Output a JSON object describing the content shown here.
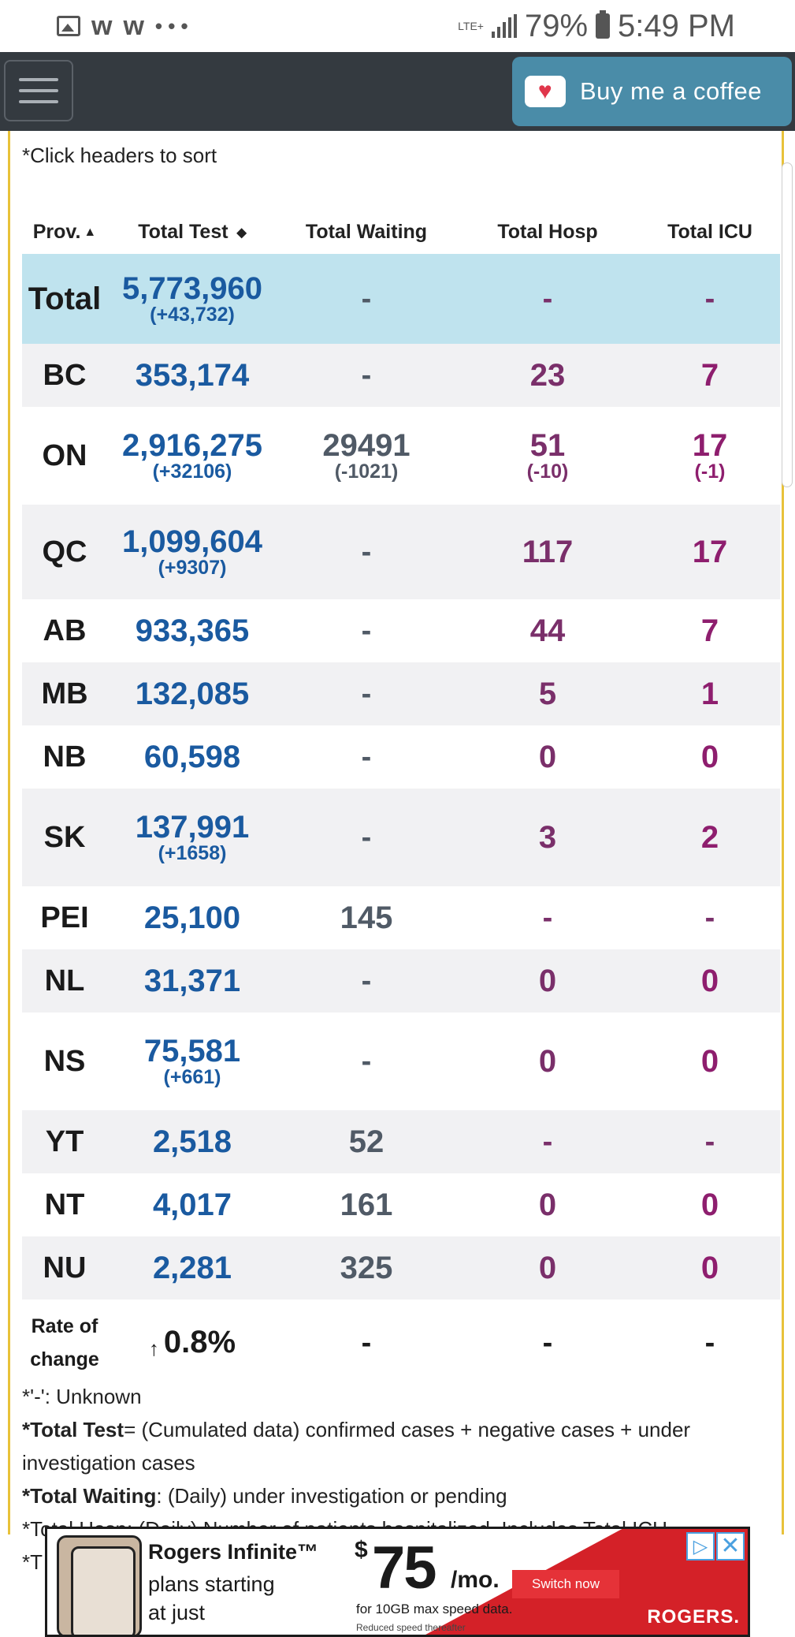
{
  "status_bar": {
    "network": "LTE+",
    "battery": "79%",
    "time": "5:49 PM",
    "icons": [
      "gallery-icon",
      "w-app-icon",
      "w-app-icon",
      "more-icon"
    ]
  },
  "nav": {
    "menu_icon": "hamburger-icon",
    "coffee_label": "Buy me a coffee"
  },
  "sort_note": "*Click headers to sort",
  "table": {
    "headers": [
      "Prov.",
      "Total Test",
      "Total Waiting",
      "Total Hosp",
      "Total ICU"
    ],
    "total": {
      "prov": "Total",
      "test": "5,773,960",
      "test_change": "(+43,732)",
      "waiting": "-",
      "hosp": "-",
      "icu": "-"
    },
    "rows": [
      {
        "prov": "BC",
        "test": "353,174",
        "test_change": "",
        "waiting": "-",
        "waiting_change": "",
        "hosp": "23",
        "hosp_change": "",
        "icu": "7",
        "icu_change": ""
      },
      {
        "prov": "ON",
        "test": "2,916,275",
        "test_change": "(+32106)",
        "waiting": "29491",
        "waiting_change": "(-1021)",
        "hosp": "51",
        "hosp_change": "(-10)",
        "icu": "17",
        "icu_change": "(-1)"
      },
      {
        "prov": "QC",
        "test": "1,099,604",
        "test_change": "(+9307)",
        "waiting": "-",
        "waiting_change": "",
        "hosp": "117",
        "hosp_change": "",
        "icu": "17",
        "icu_change": ""
      },
      {
        "prov": "AB",
        "test": "933,365",
        "test_change": "",
        "waiting": "-",
        "waiting_change": "",
        "hosp": "44",
        "hosp_change": "",
        "icu": "7",
        "icu_change": ""
      },
      {
        "prov": "MB",
        "test": "132,085",
        "test_change": "",
        "waiting": "-",
        "waiting_change": "",
        "hosp": "5",
        "hosp_change": "",
        "icu": "1",
        "icu_change": ""
      },
      {
        "prov": "NB",
        "test": "60,598",
        "test_change": "",
        "waiting": "-",
        "waiting_change": "",
        "hosp": "0",
        "hosp_change": "",
        "icu": "0",
        "icu_change": ""
      },
      {
        "prov": "SK",
        "test": "137,991",
        "test_change": "(+1658)",
        "waiting": "-",
        "waiting_change": "",
        "hosp": "3",
        "hosp_change": "",
        "icu": "2",
        "icu_change": ""
      },
      {
        "prov": "PEI",
        "test": "25,100",
        "test_change": "",
        "waiting": "145",
        "waiting_change": "",
        "hosp": "-",
        "hosp_change": "",
        "icu": "-",
        "icu_change": ""
      },
      {
        "prov": "NL",
        "test": "31,371",
        "test_change": "",
        "waiting": "-",
        "waiting_change": "",
        "hosp": "0",
        "hosp_change": "",
        "icu": "0",
        "icu_change": ""
      },
      {
        "prov": "NS",
        "test": "75,581",
        "test_change": "(+661)",
        "waiting": "-",
        "waiting_change": "",
        "hosp": "0",
        "hosp_change": "",
        "icu": "0",
        "icu_change": ""
      },
      {
        "prov": "YT",
        "test": "2,518",
        "test_change": "",
        "waiting": "52",
        "waiting_change": "",
        "hosp": "-",
        "hosp_change": "",
        "icu": "-",
        "icu_change": ""
      },
      {
        "prov": "NT",
        "test": "4,017",
        "test_change": "",
        "waiting": "161",
        "waiting_change": "",
        "hosp": "0",
        "hosp_change": "",
        "icu": "0",
        "icu_change": ""
      },
      {
        "prov": "NU",
        "test": "2,281",
        "test_change": "",
        "waiting": "325",
        "waiting_change": "",
        "hosp": "0",
        "hosp_change": "",
        "icu": "0",
        "icu_change": ""
      }
    ],
    "rate": {
      "label_line1": "Rate of",
      "label_line2": "change",
      "arrow": "↑",
      "value": "0.8%",
      "waiting": "-",
      "hosp": "-",
      "icu": "-"
    }
  },
  "notes": {
    "unknown": "*'-': Unknown",
    "total_test_label": "*Total Test",
    "total_test_text": "= (Cumulated data) confirmed cases + negative cases + under investigation cases",
    "total_waiting_label": "*Total Waiting",
    "total_waiting_text": ": (Daily) under investigation or pending",
    "total_hosp_partial": "*Total Hosp: (Daily) Number of patients hospitalized. Includes Total ICU",
    "total_icu_partial": "*T"
  },
  "ad": {
    "brand": "Rogers Infinite™",
    "tagline": "plans starting at just",
    "dollar": "$",
    "price": "75",
    "per": "/mo.",
    "fine": "for 10GB max speed data.",
    "fine2": "Reduced speed thereafter",
    "cta": "Switch now",
    "logo": "ROGERS.",
    "choices_icon": "ad-choices-icon",
    "close_icon": "close-icon"
  },
  "colors": {
    "nav": "#343a40",
    "coffee": "#4a8ca8",
    "total_row": "#bfe3ee",
    "test_blue": "#1a5aa0",
    "hosp_purple": "#7a2f6a",
    "border_gold": "#e8c23a"
  }
}
